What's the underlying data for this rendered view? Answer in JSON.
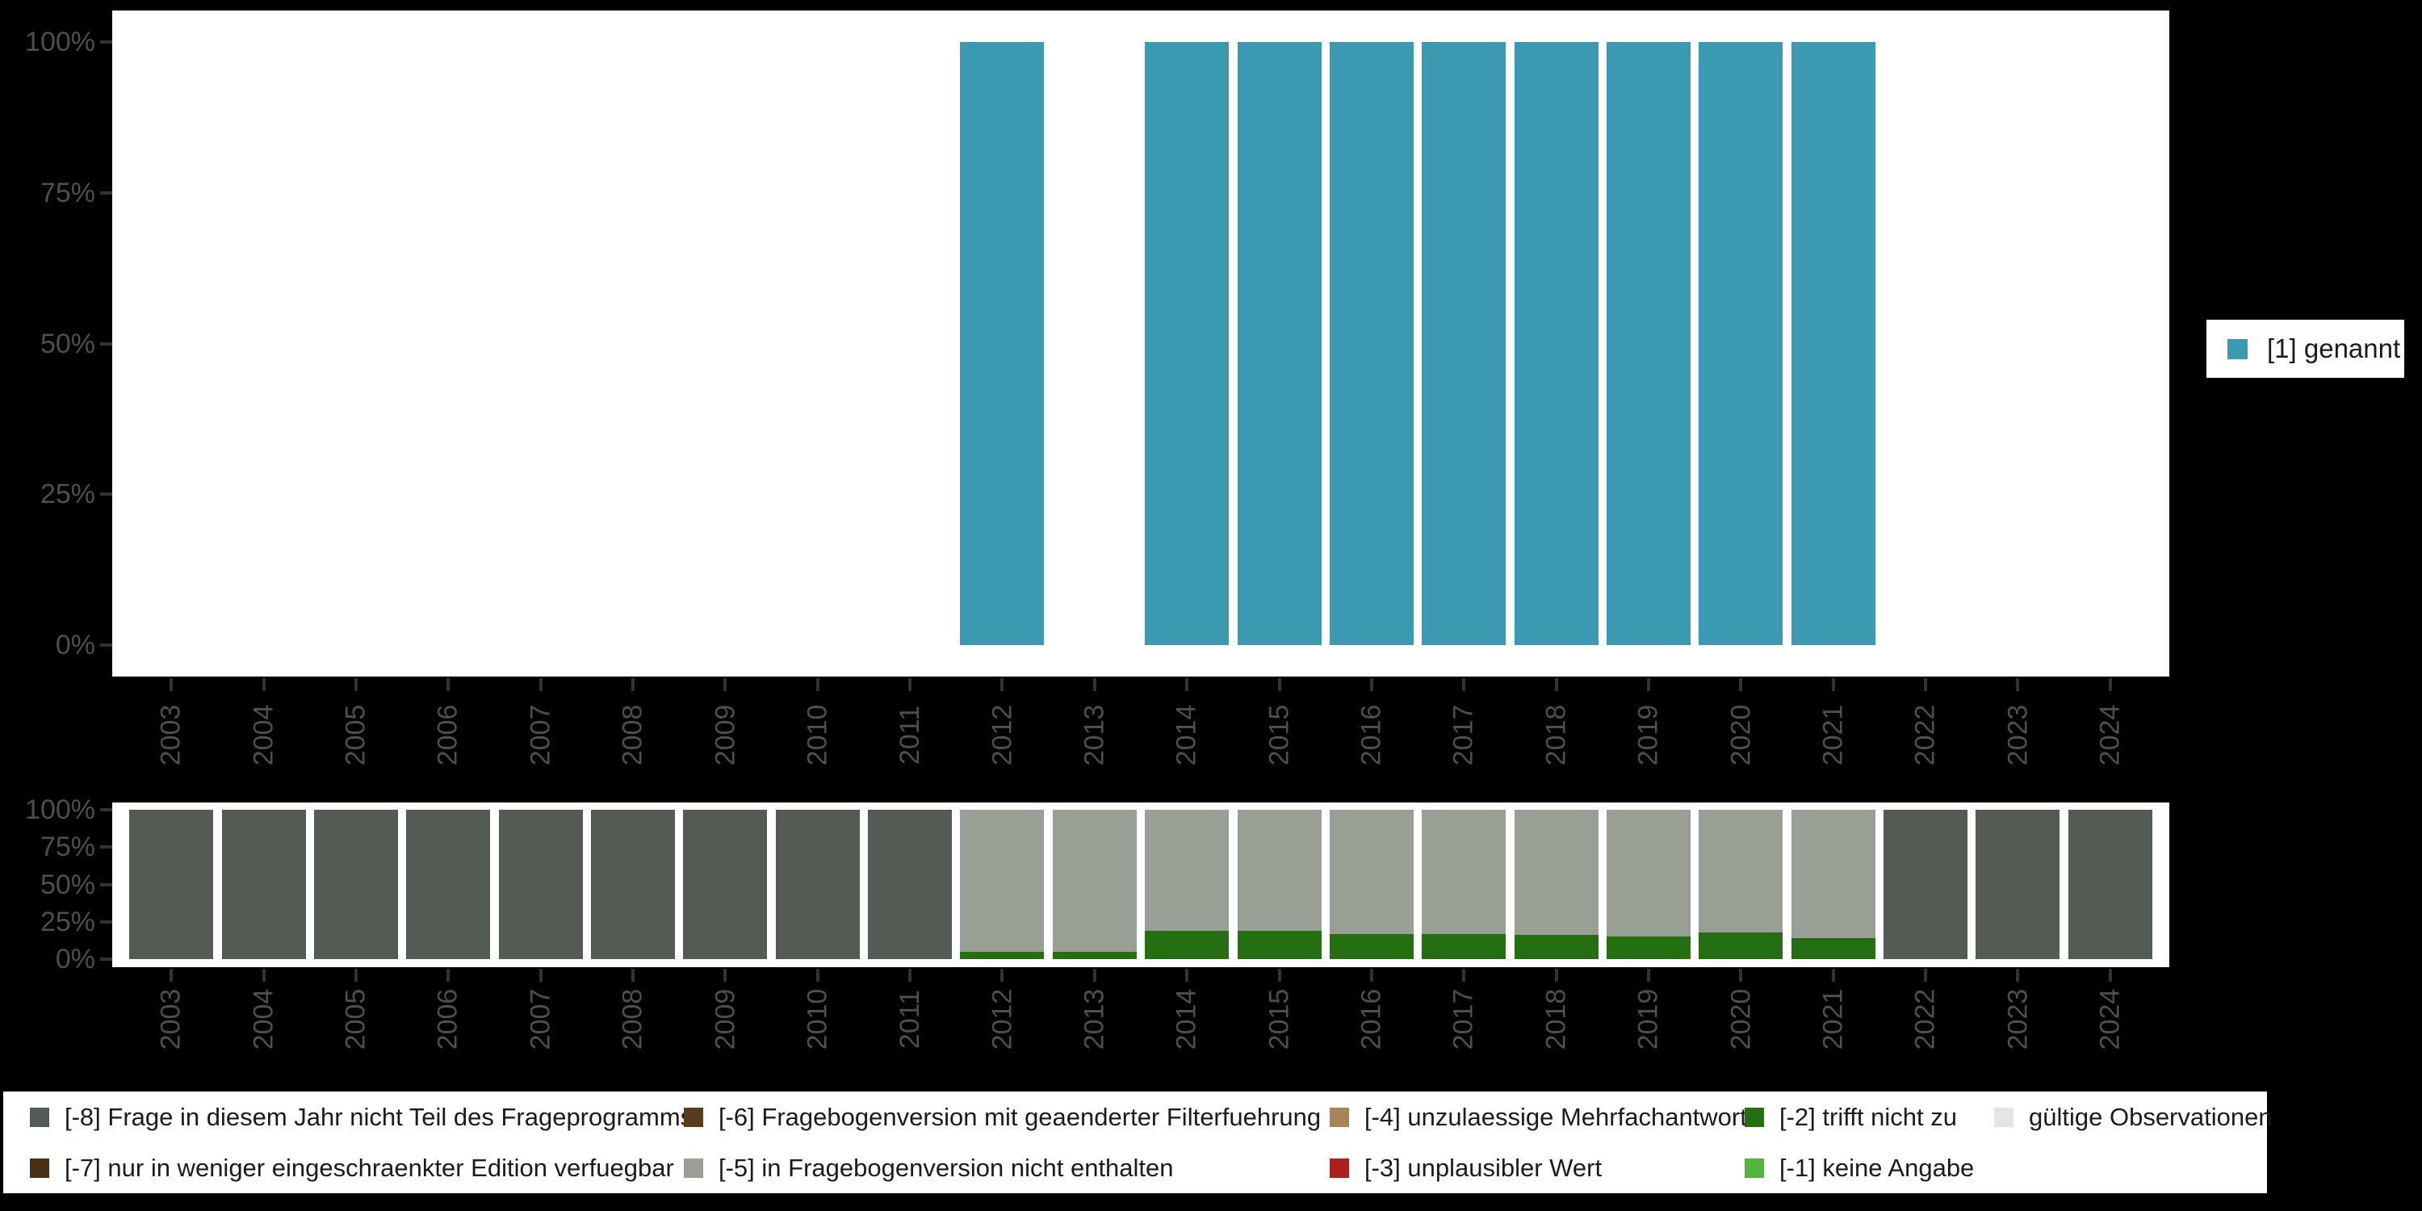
{
  "page_bg": "#000000",
  "plot_bg": "#FFFFFF",
  "axis_text_color": "#4E4E4E",
  "tick_color": "#333333",
  "legend_text_color": "#1B1B1B",
  "chart_data": [
    {
      "id": "top",
      "type": "bar",
      "title": "",
      "xlabel": "",
      "ylabel": "",
      "ylim": [
        0,
        100
      ],
      "grid": false,
      "y_ticks": [
        "0%",
        "25%",
        "50%",
        "75%",
        "100%"
      ],
      "y_tick_values": [
        0,
        25,
        50,
        75,
        100
      ],
      "categories": [
        "2003",
        "2004",
        "2005",
        "2006",
        "2007",
        "2008",
        "2009",
        "2010",
        "2011",
        "2012",
        "2013",
        "2014",
        "2015",
        "2016",
        "2017",
        "2018",
        "2019",
        "2020",
        "2021",
        "2022",
        "2023",
        "2024"
      ],
      "legend_position": "right",
      "series": [
        {
          "name": "[1] genannt",
          "color": "#3C99B2",
          "values": [
            null,
            null,
            null,
            null,
            null,
            null,
            null,
            null,
            null,
            100,
            null,
            100,
            100,
            100,
            100,
            100,
            100,
            100,
            100,
            null,
            null,
            null
          ]
        }
      ]
    },
    {
      "id": "bottom",
      "type": "stacked-bar",
      "title": "",
      "xlabel": "",
      "ylabel": "",
      "ylim": [
        0,
        100
      ],
      "grid": false,
      "y_ticks": [
        "0%",
        "25%",
        "50%",
        "75%",
        "100%"
      ],
      "y_tick_values": [
        0,
        25,
        50,
        75,
        100
      ],
      "categories": [
        "2003",
        "2004",
        "2005",
        "2006",
        "2007",
        "2008",
        "2009",
        "2010",
        "2011",
        "2012",
        "2013",
        "2014",
        "2015",
        "2016",
        "2017",
        "2018",
        "2019",
        "2020",
        "2021",
        "2022",
        "2023",
        "2024"
      ],
      "stack_order_bottom_to_top": [
        2,
        1,
        0
      ],
      "series": [
        {
          "name": "[-8] Frage in diesem Jahr nicht Teil des Frageprogramms",
          "color": "#545B54",
          "values": [
            100,
            100,
            100,
            100,
            100,
            100,
            100,
            100,
            100,
            0,
            0,
            0,
            0,
            0,
            0,
            0,
            0,
            0,
            0,
            100,
            100,
            100
          ]
        },
        {
          "name": "[-5] in Fragebogenversion nicht enthalten",
          "color": "#9A9F95",
          "values": [
            0,
            0,
            0,
            0,
            0,
            0,
            0,
            0,
            0,
            95,
            95,
            81,
            81,
            83,
            83,
            84,
            85,
            82,
            86,
            0,
            0,
            0
          ]
        },
        {
          "name": "[-2] trifft nicht zu",
          "color": "#256E12",
          "values": [
            0,
            0,
            0,
            0,
            0,
            0,
            0,
            0,
            0,
            5,
            5,
            19,
            19,
            17,
            17,
            16,
            15,
            18,
            14,
            0,
            0,
            0
          ]
        }
      ]
    }
  ],
  "legend_bottom": {
    "items": [
      {
        "label": "[-8] Frage in diesem Jahr nicht Teil des Frageprogramms",
        "color": "#545B54"
      },
      {
        "label": "[-7] nur in weniger eingeschraenkter Edition verfuegbar",
        "color": "#4A2F17"
      },
      {
        "label": "[-6] Fragebogenversion mit geaenderter Filterfuehrung",
        "color": "#5C3A1E"
      },
      {
        "label": "[-5] in Fragebogenversion nicht enthalten",
        "color": "#9A9F95"
      },
      {
        "label": "[-4] unzulaessige Mehrfachantwort",
        "color": "#A8845A"
      },
      {
        "label": "[-3] unplausibler Wert",
        "color": "#AD1F1F"
      },
      {
        "label": "[-2] trifft nicht zu",
        "color": "#256E12"
      },
      {
        "label": "[-1] keine Angabe",
        "color": "#52B43C"
      },
      {
        "label": "gültige Observationen",
        "color": "#E3E7E1"
      }
    ]
  }
}
